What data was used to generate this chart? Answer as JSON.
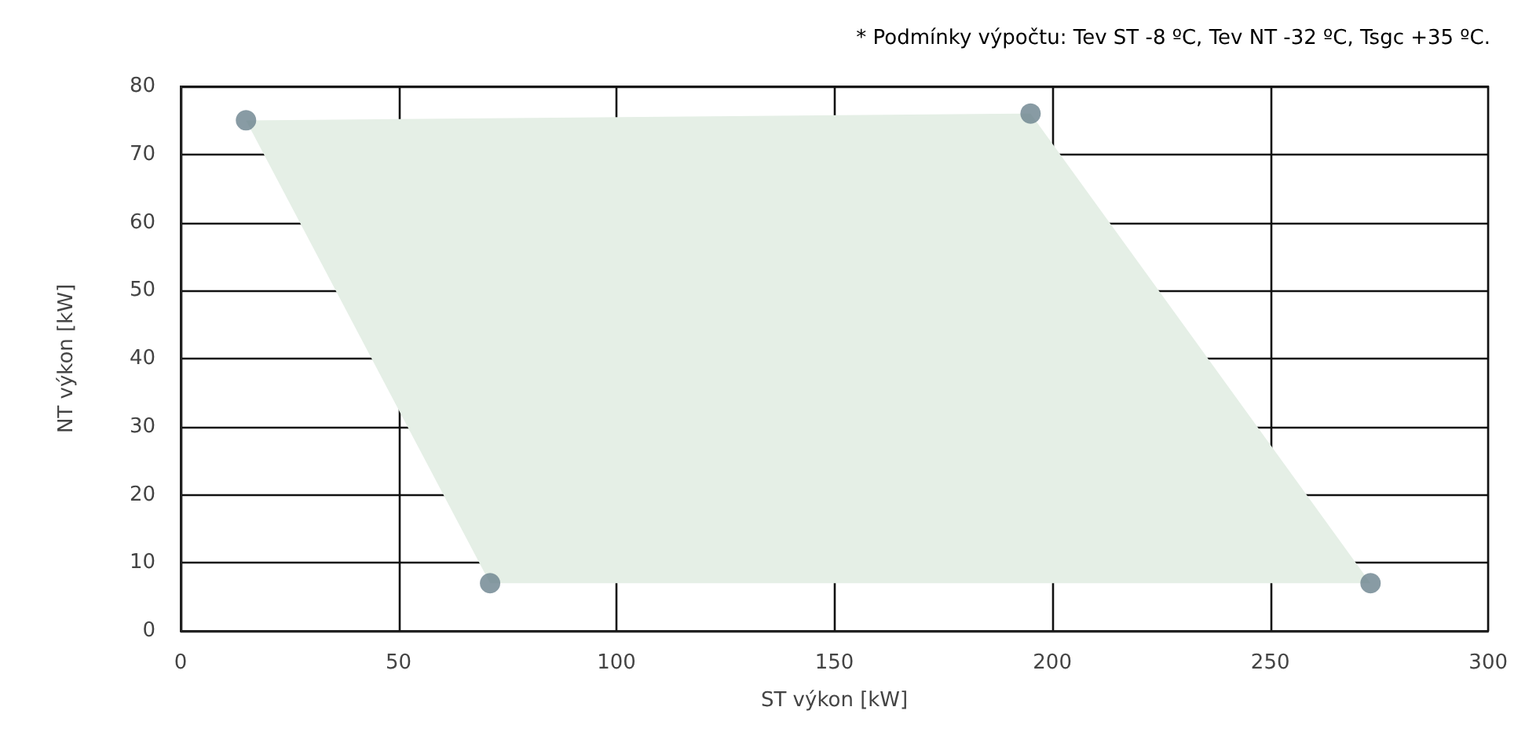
{
  "chart_data": {
    "type": "scatter",
    "xlabel": "ST výkon [kW]",
    "ylabel": "NT výkon [kW]",
    "annotations": [
      "* Podmínky výpočtu: Tev ST -8 ºC, Tev NT -32 ºC, Tsgc +35 ºC."
    ],
    "series": [
      {
        "type": "area",
        "color": "#e5efe6",
        "x": [
          15,
          195,
          273,
          71
        ],
        "values": [
          75,
          76,
          7,
          7
        ]
      },
      {
        "color": "#6a828d",
        "marker": "circle",
        "x": [
          15,
          195,
          273,
          71
        ],
        "values": [
          75,
          76,
          7,
          7
        ]
      }
    ],
    "xlim": [
      0,
      300
    ],
    "xticks": [
      0,
      50,
      100,
      150,
      200,
      250,
      300
    ],
    "ylim": [
      0,
      80
    ],
    "yticks": [
      0,
      10,
      20,
      30,
      40,
      50,
      60,
      70,
      80
    ],
    "grid": true
  }
}
